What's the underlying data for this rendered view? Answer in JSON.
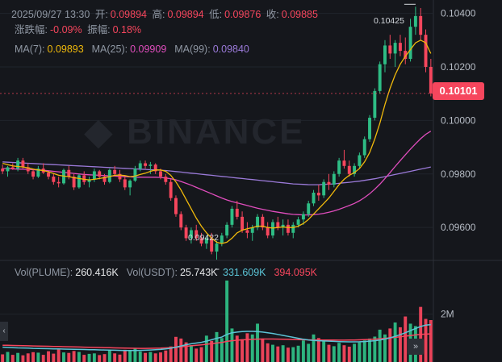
{
  "header": {
    "datetime": "2025/09/27 13:30",
    "open_label": "开:",
    "open": "0.09894",
    "high_label": "高:",
    "high": "0.09894",
    "low_label": "低:",
    "low": "0.09876",
    "close_label": "收:",
    "close": "0.09885",
    "change_label": "涨跌幅:",
    "change": "-0.09%",
    "amplitude_label": "振幅:",
    "amplitude": "0.18%"
  },
  "ma": {
    "ma7_label": "MA(7):",
    "ma7": "0.09893",
    "ma25_label": "MA(25):",
    "ma25": "0.09909",
    "ma99_label": "MA(99):",
    "ma99": "0.09840"
  },
  "volume_header": {
    "vol_plume_label": "Vol(PLUME):",
    "vol_plume": "260.416K",
    "vol_usdt_label": "Vol(USDT):",
    "vol_usdt": "25.743K",
    "ma_a": "331.609K",
    "ma_b": "394.095K"
  },
  "watermark": "BINANCE",
  "current_price": "0.10101",
  "high_marker": "0.10425",
  "low_marker": "0.09422",
  "volume_axis_label": "2M",
  "colors": {
    "up": "#2ebd85",
    "down": "#f6465d",
    "ma7": "#f0b90b",
    "ma25": "#e04dbd",
    "ma99": "#9b7ad9",
    "vol_ma1": "#5bc4d6",
    "vol_ma2": "#f6465d"
  },
  "chart_data": {
    "type": "candlestick",
    "y_ticks": [
      "0.10400",
      "0.10200",
      "0.10000",
      "0.09800",
      "0.09600"
    ],
    "ylim": [
      0.0948,
      0.1045
    ],
    "candles": [
      [
        0.0982,
        0.09835,
        0.098,
        0.0981
      ],
      [
        0.0981,
        0.0983,
        0.0979,
        0.09825
      ],
      [
        0.09825,
        0.0984,
        0.09815,
        0.0982
      ],
      [
        0.0982,
        0.0986,
        0.0981,
        0.0985
      ],
      [
        0.0985,
        0.0986,
        0.0982,
        0.09825
      ],
      [
        0.09825,
        0.0984,
        0.098,
        0.0981
      ],
      [
        0.0981,
        0.0982,
        0.0978,
        0.0979
      ],
      [
        0.0979,
        0.0983,
        0.09785,
        0.0982
      ],
      [
        0.0982,
        0.0984,
        0.098,
        0.09805
      ],
      [
        0.09805,
        0.0981,
        0.0978,
        0.0979
      ],
      [
        0.0979,
        0.098,
        0.0976,
        0.0977
      ],
      [
        0.0977,
        0.0979,
        0.0975,
        0.09765
      ],
      [
        0.09765,
        0.0982,
        0.0976,
        0.09815
      ],
      [
        0.09815,
        0.0983,
        0.0978,
        0.0979
      ],
      [
        0.0979,
        0.098,
        0.0974,
        0.0975
      ],
      [
        0.0975,
        0.098,
        0.09745,
        0.09795
      ],
      [
        0.09795,
        0.0981,
        0.0976,
        0.0977
      ],
      [
        0.0977,
        0.0979,
        0.0975,
        0.0978
      ],
      [
        0.0978,
        0.0982,
        0.0977,
        0.0981
      ],
      [
        0.0981,
        0.09815,
        0.0978,
        0.0979
      ],
      [
        0.0979,
        0.098,
        0.0976,
        0.0977
      ],
      [
        0.0977,
        0.0982,
        0.09765,
        0.09815
      ],
      [
        0.09815,
        0.0983,
        0.0979,
        0.098
      ],
      [
        0.098,
        0.09815,
        0.0977,
        0.0978
      ],
      [
        0.0978,
        0.0979,
        0.0974,
        0.0975
      ],
      [
        0.0975,
        0.0978,
        0.0972,
        0.09775
      ],
      [
        0.09775,
        0.0983,
        0.0977,
        0.0982
      ],
      [
        0.0982,
        0.0985,
        0.0981,
        0.0984
      ],
      [
        0.0984,
        0.0985,
        0.0982,
        0.0983
      ],
      [
        0.0983,
        0.09845,
        0.098,
        0.09835
      ],
      [
        0.09835,
        0.0984,
        0.098,
        0.0981
      ],
      [
        0.0981,
        0.0982,
        0.0978,
        0.0979
      ],
      [
        0.0979,
        0.098,
        0.0976,
        0.0977
      ],
      [
        0.0977,
        0.0978,
        0.097,
        0.0971
      ],
      [
        0.0971,
        0.0972,
        0.0964,
        0.0965
      ],
      [
        0.0965,
        0.0966,
        0.0959,
        0.096
      ],
      [
        0.096,
        0.0961,
        0.0955,
        0.0956
      ],
      [
        0.0956,
        0.096,
        0.0954,
        0.0959
      ],
      [
        0.0959,
        0.0961,
        0.0955,
        0.0956
      ],
      [
        0.0956,
        0.0958,
        0.0953,
        0.0954
      ],
      [
        0.0954,
        0.0957,
        0.0952,
        0.0956
      ],
      [
        0.0956,
        0.0958,
        0.095,
        0.0951
      ],
      [
        0.0951,
        0.0955,
        0.0948,
        0.0954
      ],
      [
        0.0954,
        0.0958,
        0.0953,
        0.0957
      ],
      [
        0.0957,
        0.0962,
        0.0956,
        0.0961
      ],
      [
        0.0961,
        0.0968,
        0.096,
        0.0967
      ],
      [
        0.0967,
        0.097,
        0.0963,
        0.0964
      ],
      [
        0.0964,
        0.0966,
        0.0958,
        0.0959
      ],
      [
        0.0959,
        0.0962,
        0.0956,
        0.0958
      ],
      [
        0.0958,
        0.0961,
        0.0955,
        0.096
      ],
      [
        0.096,
        0.0965,
        0.0959,
        0.0964
      ],
      [
        0.0964,
        0.0965,
        0.0959,
        0.096
      ],
      [
        0.096,
        0.0962,
        0.0956,
        0.0957
      ],
      [
        0.0957,
        0.0963,
        0.0956,
        0.0962
      ],
      [
        0.0962,
        0.0964,
        0.0959,
        0.096
      ],
      [
        0.096,
        0.0963,
        0.0957,
        0.0961
      ],
      [
        0.0961,
        0.0963,
        0.0957,
        0.0958
      ],
      [
        0.0958,
        0.0962,
        0.0956,
        0.0961
      ],
      [
        0.0961,
        0.0964,
        0.096,
        0.0963
      ],
      [
        0.0963,
        0.0966,
        0.0961,
        0.0965
      ],
      [
        0.0965,
        0.097,
        0.0964,
        0.0969
      ],
      [
        0.0969,
        0.0974,
        0.0968,
        0.0973
      ],
      [
        0.0973,
        0.0976,
        0.097,
        0.0972
      ],
      [
        0.0972,
        0.0978,
        0.0971,
        0.0977
      ],
      [
        0.0977,
        0.098,
        0.0974,
        0.0976
      ],
      [
        0.0976,
        0.0981,
        0.0975,
        0.098
      ],
      [
        0.098,
        0.0986,
        0.0979,
        0.0985
      ],
      [
        0.0985,
        0.0989,
        0.0982,
        0.0983
      ],
      [
        0.0983,
        0.0985,
        0.0979,
        0.098
      ],
      [
        0.098,
        0.0984,
        0.0979,
        0.0983
      ],
      [
        0.0983,
        0.0988,
        0.0982,
        0.0987
      ],
      [
        0.0987,
        0.0994,
        0.0986,
        0.0993
      ],
      [
        0.0993,
        0.1002,
        0.0992,
        0.1001
      ],
      [
        0.1001,
        0.1012,
        0.1,
        0.1011
      ],
      [
        0.1011,
        0.1022,
        0.101,
        0.1021
      ],
      [
        0.1021,
        0.103,
        0.1018,
        0.1028
      ],
      [
        0.1028,
        0.1032,
        0.1023,
        0.1025
      ],
      [
        0.1025,
        0.103,
        0.102,
        0.1029
      ],
      [
        0.1029,
        0.1032,
        0.1024,
        0.1026
      ],
      [
        0.1026,
        0.1031,
        0.1021,
        0.1023
      ],
      [
        0.1023,
        0.1038,
        0.1022,
        0.1035
      ],
      [
        0.1035,
        0.10425,
        0.1032,
        0.1039
      ],
      [
        0.1039,
        0.1042,
        0.103,
        0.1032
      ],
      [
        0.1032,
        0.1034,
        0.1018,
        0.102
      ],
      [
        0.102,
        0.1023,
        0.1009,
        0.10101
      ]
    ],
    "ma7": [
      0.0984,
      0.09835,
      0.0983,
      0.09828,
      0.09826,
      0.09823,
      0.09818,
      0.09815,
      0.09813,
      0.09808,
      0.09802,
      0.09795,
      0.09792,
      0.0979,
      0.09786,
      0.09783,
      0.0978,
      0.09778,
      0.0978,
      0.09783,
      0.09786,
      0.0979,
      0.09795,
      0.09796,
      0.09794,
      0.0979,
      0.09792,
      0.09798,
      0.09803,
      0.0981,
      0.09815,
      0.09815,
      0.0981,
      0.09795,
      0.0977,
      0.0974,
      0.09705,
      0.0967,
      0.09635,
      0.09605,
      0.0958,
      0.0956,
      0.09545,
      0.0954,
      0.09545,
      0.0956,
      0.0958,
      0.0959,
      0.09595,
      0.096,
      0.09605,
      0.09605,
      0.096,
      0.09598,
      0.096,
      0.09602,
      0.096,
      0.096,
      0.09605,
      0.09615,
      0.0963,
      0.0965,
      0.0967,
      0.0969,
      0.0971,
      0.09735,
      0.0976,
      0.0978,
      0.09795,
      0.09805,
      0.0982,
      0.09845,
      0.0988,
      0.0993,
      0.0999,
      0.1006,
      0.1012,
      0.1017,
      0.1021,
      0.1024,
      0.10265,
      0.1029,
      0.103,
      0.1029,
      0.1025
    ],
    "ma25": [
      0.0982,
      0.0982,
      0.09819,
      0.09818,
      0.09818,
      0.09817,
      0.09816,
      0.09815,
      0.09814,
      0.09812,
      0.0981,
      0.09808,
      0.09806,
      0.09804,
      0.09802,
      0.098,
      0.09798,
      0.09797,
      0.09796,
      0.09795,
      0.09794,
      0.09793,
      0.09792,
      0.09791,
      0.0979,
      0.09789,
      0.09788,
      0.09788,
      0.09788,
      0.09788,
      0.09788,
      0.09787,
      0.09785,
      0.09782,
      0.09778,
      0.09772,
      0.09765,
      0.09758,
      0.0975,
      0.09742,
      0.09734,
      0.09726,
      0.09718,
      0.0971,
      0.09703,
      0.09697,
      0.09692,
      0.09687,
      0.09682,
      0.09677,
      0.09672,
      0.09668,
      0.09664,
      0.0966,
      0.09657,
      0.09654,
      0.09651,
      0.09649,
      0.09648,
      0.09647,
      0.09647,
      0.09648,
      0.0965,
      0.09653,
      0.09657,
      0.09662,
      0.09668,
      0.09675,
      0.09682,
      0.0969,
      0.097,
      0.09712,
      0.09726,
      0.09743,
      0.09762,
      0.09783,
      0.09805,
      0.09828,
      0.0985,
      0.09872,
      0.09893,
      0.09913,
      0.09932,
      0.09948,
      0.0996
    ],
    "ma99": [
      0.09845,
      0.09844,
      0.09843,
      0.09842,
      0.09841,
      0.0984,
      0.09839,
      0.09838,
      0.09837,
      0.09836,
      0.09835,
      0.09834,
      0.09833,
      0.09832,
      0.09831,
      0.0983,
      0.09829,
      0.09828,
      0.09827,
      0.09826,
      0.09825,
      0.09824,
      0.09823,
      0.09822,
      0.09821,
      0.0982,
      0.09819,
      0.09818,
      0.09817,
      0.09816,
      0.09815,
      0.09814,
      0.09813,
      0.09811,
      0.09809,
      0.09807,
      0.09805,
      0.09803,
      0.09801,
      0.09799,
      0.09797,
      0.09795,
      0.09793,
      0.09791,
      0.09789,
      0.09787,
      0.09785,
      0.09783,
      0.09781,
      0.09779,
      0.09777,
      0.09775,
      0.09773,
      0.09771,
      0.09769,
      0.09767,
      0.09765,
      0.09763,
      0.09762,
      0.09761,
      0.0976,
      0.0976,
      0.0976,
      0.09761,
      0.09762,
      0.09763,
      0.09765,
      0.09767,
      0.09769,
      0.09771,
      0.09773,
      0.09776,
      0.09779,
      0.09782,
      0.09786,
      0.0979,
      0.09794,
      0.09798,
      0.09802,
      0.09806,
      0.0981,
      0.09814,
      0.09818,
      0.09822,
      0.09826
    ],
    "volume_ylim": [
      0,
      3500000
    ],
    "volume_tick": 2000000,
    "volumes": [
      320000,
      420000,
      300000,
      380000,
      280000,
      360000,
      410000,
      390000,
      300000,
      450000,
      350000,
      520000,
      400000,
      380000,
      460000,
      420000,
      300000,
      340000,
      360000,
      290000,
      330000,
      480000,
      360000,
      310000,
      510000,
      470000,
      560000,
      440000,
      380000,
      420000,
      360000,
      400000,
      480000,
      650000,
      1050000,
      980000,
      820000,
      700000,
      560000,
      620000,
      1100000,
      880000,
      1250000,
      1000000,
      3400000,
      1400000,
      1100000,
      950000,
      1200000,
      1150000,
      1600000,
      980000,
      780000,
      720000,
      650000,
      700000,
      600000,
      620000,
      680000,
      900000,
      760000,
      1150000,
      1000000,
      860000,
      720000,
      660000,
      800000,
      700000,
      640000,
      760000,
      820000,
      900000,
      980000,
      1060000,
      1350000,
      1150000,
      1400000,
      1650000,
      1450000,
      1900000,
      1600000,
      1500000,
      2300000,
      1800000,
      1750000
    ],
    "vol_ma_a": [
      620000,
      610000,
      600000,
      590000,
      585000,
      580000,
      570000,
      565000,
      560000,
      555000,
      550000,
      545000,
      540000,
      535000,
      530000,
      525000,
      520000,
      515000,
      510000,
      505000,
      500000,
      495000,
      490000,
      485000,
      480000,
      478000,
      480000,
      485000,
      490000,
      500000,
      510000,
      525000,
      545000,
      575000,
      620000,
      670000,
      720000,
      760000,
      790000,
      820000,
      870000,
      930000,
      990000,
      1040000,
      1150000,
      1220000,
      1250000,
      1270000,
      1280000,
      1280000,
      1270000,
      1250000,
      1220000,
      1190000,
      1150000,
      1110000,
      1070000,
      1030000,
      990000,
      950000,
      920000,
      900000,
      890000,
      880000,
      870000,
      860000,
      850000,
      845000,
      840000,
      840000,
      845000,
      855000,
      870000,
      890000,
      920000,
      960000,
      1010000,
      1070000,
      1140000,
      1220000,
      1310000,
      1400000,
      1480000,
      1540000,
      1560000
    ],
    "vol_ma_b": [
      700000,
      695000,
      690000,
      685000,
      680000,
      675000,
      670000,
      665000,
      660000,
      655000,
      650000,
      645000,
      640000,
      635000,
      630000,
      625000,
      620000,
      615000,
      610000,
      605000,
      600000,
      595000,
      590000,
      585000,
      580000,
      575000,
      572000,
      570000,
      570000,
      572000,
      575000,
      580000,
      588000,
      600000,
      615000,
      635000,
      655000,
      675000,
      695000,
      715000,
      740000,
      765000,
      790000,
      815000,
      860000,
      890000,
      910000,
      925000,
      935000,
      945000,
      955000,
      960000,
      960000,
      958000,
      955000,
      950000,
      945000,
      940000,
      935000,
      930000,
      925000,
      922000,
      920000,
      918000,
      916000,
      914000,
      912000,
      912000,
      914000,
      918000,
      924000,
      932000,
      942000,
      955000,
      970000,
      988000,
      1008000,
      1030000,
      1055000,
      1080000,
      1105000,
      1130000,
      1150000,
      1165000,
      1175000
    ]
  }
}
